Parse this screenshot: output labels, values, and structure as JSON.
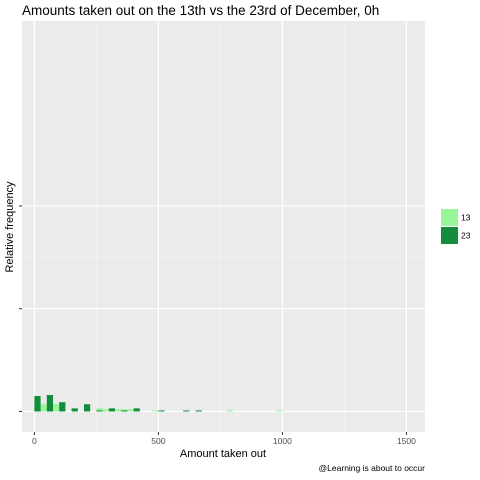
{
  "chart_data": {
    "type": "bar",
    "title": "Amounts taken out on the 13th vs the 23rd of December, 0h",
    "xlabel": "Amount taken out",
    "ylabel": "Relative frequency",
    "caption": "@Learning is about to occur",
    "xlim": [
      -50,
      1575
    ],
    "xticks": [
      0,
      500,
      1000,
      1500
    ],
    "xtick_labels": [
      "0",
      "500",
      "1000",
      "1500"
    ],
    "ylim": [
      -0.01,
      0.19
    ],
    "yticks": [
      0,
      0.05,
      0.1
    ],
    "ytick_labels": [
      "",
      "",
      ""
    ],
    "grid": true,
    "legend_position": "right",
    "bin_width": 25,
    "series": [
      {
        "name": "13",
        "color": "#98f598",
        "bins": [
          [
            0,
            0.0045
          ],
          [
            25,
            0.0035
          ],
          [
            50,
            0.0045
          ],
          [
            75,
            0.0035
          ],
          [
            100,
            0.002
          ],
          [
            150,
            0.001
          ],
          [
            200,
            0.001
          ],
          [
            250,
            0.0015
          ],
          [
            275,
            0.001
          ],
          [
            300,
            0.0015
          ],
          [
            325,
            0.001
          ],
          [
            350,
            0.001
          ],
          [
            375,
            0.001
          ],
          [
            475,
            0.0005
          ],
          [
            775,
            0.0006
          ],
          [
            975,
            0.0005
          ]
        ]
      },
      {
        "name": "23",
        "color": "#138c3c",
        "bins": [
          [
            0,
            0.0075
          ],
          [
            50,
            0.008
          ],
          [
            100,
            0.0045
          ],
          [
            150,
            0.0015
          ],
          [
            200,
            0.0035
          ],
          [
            250,
            0.0005
          ],
          [
            300,
            0.0015
          ],
          [
            350,
            0.0005
          ],
          [
            400,
            0.0015
          ],
          [
            500,
            0.0005
          ],
          [
            600,
            0.0005
          ],
          [
            650,
            0.0005
          ]
        ]
      }
    ]
  }
}
